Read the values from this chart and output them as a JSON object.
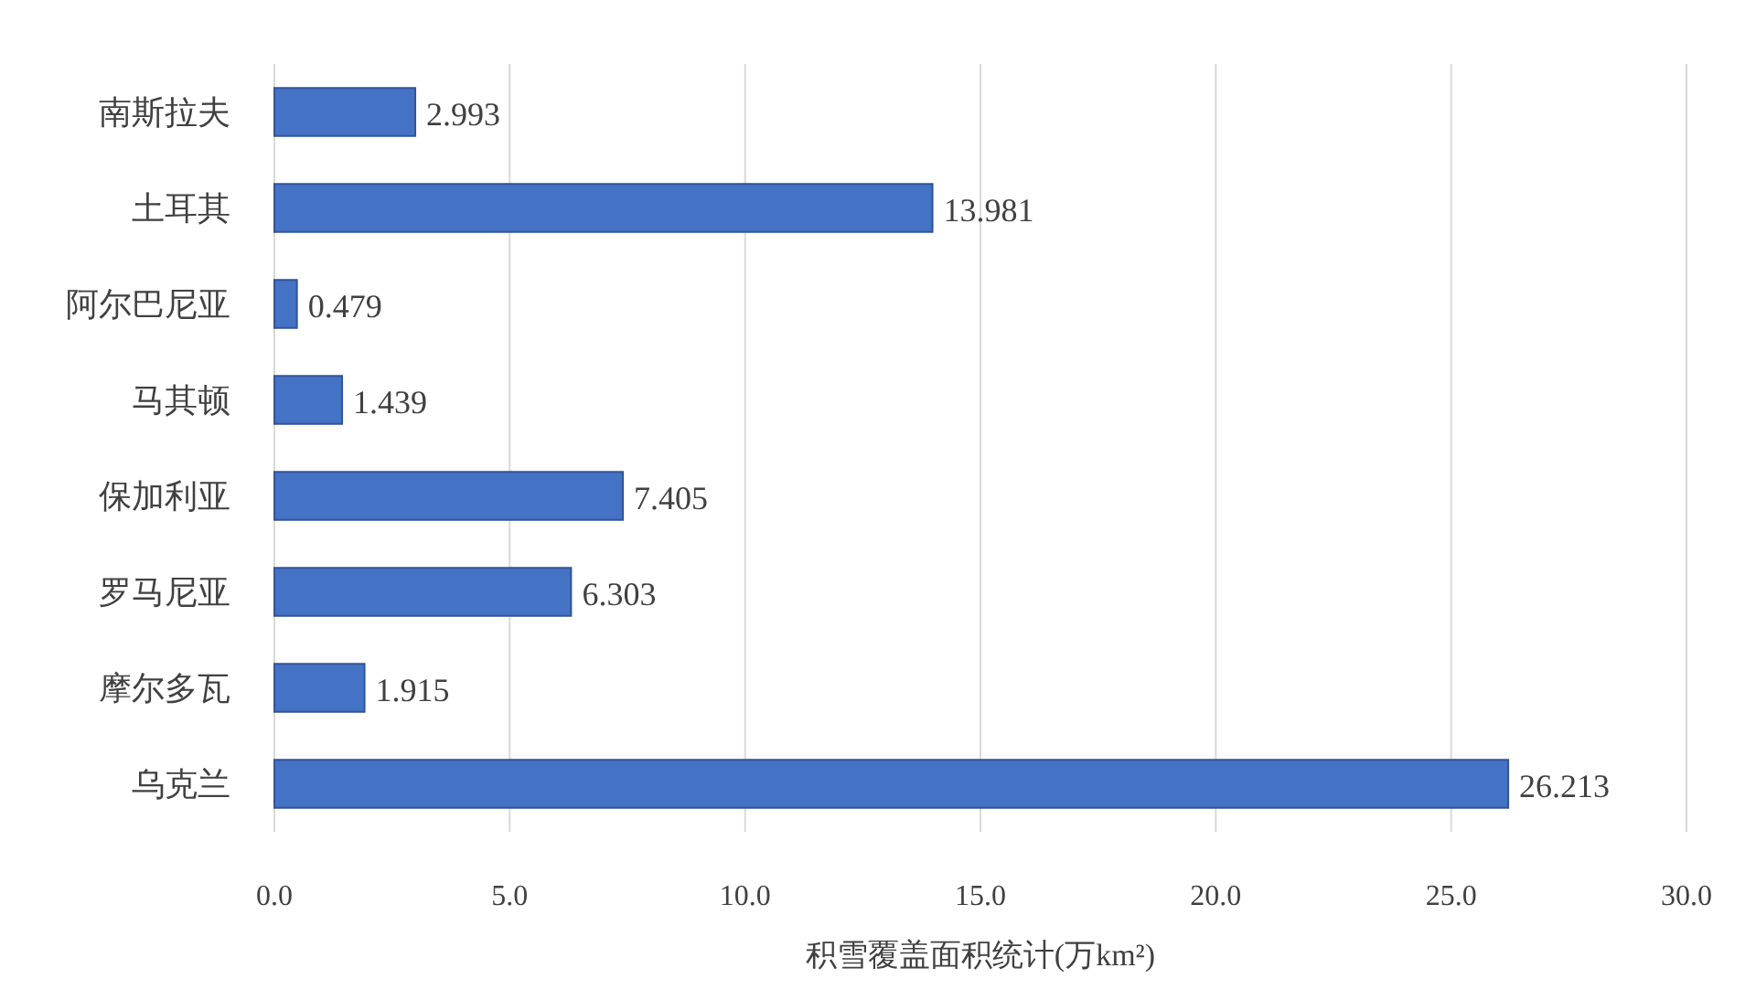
{
  "chart_data": {
    "type": "bar",
    "orientation": "horizontal",
    "xlabel": "积雪覆盖面积统计(万km²)",
    "categories": [
      "南斯拉夫",
      "土耳其",
      "阿尔巴尼亚",
      "马其顿",
      "保加利亚",
      "罗马尼亚",
      "摩尔多瓦",
      "乌克兰"
    ],
    "values": [
      2.993,
      13.981,
      0.479,
      1.439,
      7.405,
      6.303,
      1.915,
      26.213
    ],
    "color": "#4472c4",
    "xlim": [
      0,
      30
    ],
    "xticks": [
      {
        "value": 0,
        "label": "0.0"
      },
      {
        "value": 5,
        "label": "5.0"
      },
      {
        "value": 10,
        "label": "10.0"
      },
      {
        "value": 15,
        "label": "15.0"
      },
      {
        "value": 20,
        "label": "20.0"
      },
      {
        "value": 25,
        "label": "25.0"
      },
      {
        "value": 30,
        "label": "30.0"
      }
    ],
    "grid": "x",
    "data_labels": true
  }
}
